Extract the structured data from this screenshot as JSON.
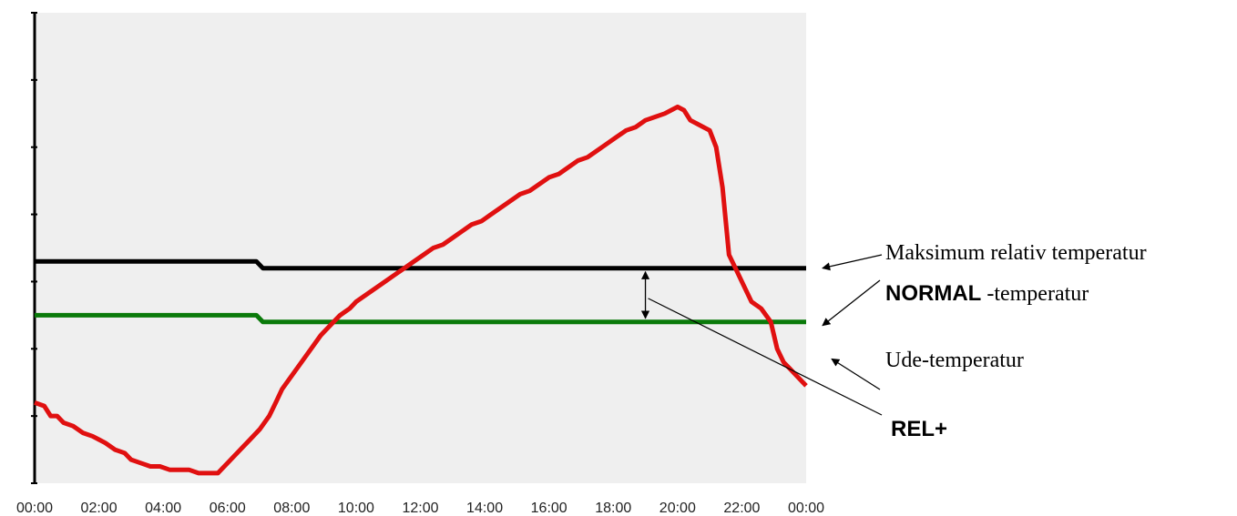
{
  "chart_data": {
    "type": "line",
    "x_ticks": [
      "00:00",
      "02:00",
      "04:00",
      "06:00",
      "08:00",
      "10:00",
      "12:00",
      "14:00",
      "16:00",
      "18:00",
      "20:00",
      "22:00",
      "00:00"
    ],
    "xlim": [
      0,
      24
    ],
    "ylim": [
      0,
      7
    ],
    "y_tick_count": 8,
    "y_tick_labels": "none",
    "grid": false,
    "background_color": "#efefef",
    "series": [
      {
        "color": "#000000",
        "x": [
          0,
          6.9,
          7.1,
          24
        ],
        "y": [
          3.3,
          3.3,
          3.2,
          3.2
        ]
      },
      {
        "color": "#0a7a0a",
        "x": [
          0,
          6.9,
          7.1,
          24
        ],
        "y": [
          2.5,
          2.5,
          2.4,
          2.4
        ]
      },
      {
        "color": "#e01010",
        "x": [
          0,
          0.3,
          0.5,
          0.7,
          0.9,
          1.2,
          1.5,
          1.8,
          2.0,
          2.2,
          2.5,
          2.8,
          3.0,
          3.3,
          3.6,
          3.9,
          4.2,
          4.5,
          4.8,
          5.1,
          5.4,
          5.7,
          6.0,
          6.3,
          6.5,
          6.7,
          7.0,
          7.3,
          7.5,
          7.7,
          8.0,
          8.3,
          8.6,
          8.9,
          9.2,
          9.5,
          9.8,
          10.0,
          10.3,
          10.6,
          10.9,
          11.2,
          11.5,
          11.8,
          12.1,
          12.4,
          12.7,
          13.0,
          13.3,
          13.6,
          13.9,
          14.2,
          14.5,
          14.8,
          15.1,
          15.4,
          15.7,
          16.0,
          16.3,
          16.6,
          16.9,
          17.2,
          17.5,
          17.8,
          18.1,
          18.4,
          18.7,
          19.0,
          19.3,
          19.6,
          19.8,
          20.0,
          20.2,
          20.4,
          20.6,
          20.8,
          21.0,
          21.2,
          21.4,
          21.6,
          21.8,
          22.0,
          22.3,
          22.6,
          22.9,
          23.1,
          23.3,
          23.5,
          23.7,
          24.0
        ],
        "y": [
          1.2,
          1.15,
          1.0,
          1.0,
          0.9,
          0.85,
          0.75,
          0.7,
          0.65,
          0.6,
          0.5,
          0.45,
          0.35,
          0.3,
          0.25,
          0.25,
          0.2,
          0.2,
          0.2,
          0.15,
          0.15,
          0.15,
          0.3,
          0.45,
          0.55,
          0.65,
          0.8,
          1.0,
          1.2,
          1.4,
          1.6,
          1.8,
          2.0,
          2.2,
          2.35,
          2.5,
          2.6,
          2.7,
          2.8,
          2.9,
          3.0,
          3.1,
          3.2,
          3.3,
          3.4,
          3.5,
          3.55,
          3.65,
          3.75,
          3.85,
          3.9,
          4.0,
          4.1,
          4.2,
          4.3,
          4.35,
          4.45,
          4.55,
          4.6,
          4.7,
          4.8,
          4.85,
          4.95,
          5.05,
          5.15,
          5.25,
          5.3,
          5.4,
          5.45,
          5.5,
          5.55,
          5.6,
          5.55,
          5.4,
          5.35,
          5.3,
          5.25,
          5.0,
          4.4,
          3.4,
          3.2,
          3.0,
          2.7,
          2.6,
          2.4,
          2.0,
          1.8,
          1.7,
          1.6,
          1.45
        ]
      }
    ],
    "annotations": [
      {
        "text": "Maksimum relativ temperatur",
        "style": "serif",
        "points_to": "black line"
      },
      {
        "text_bold": "NORMAL",
        "text": " -temperatur",
        "points_to": "green line"
      },
      {
        "text": "Ude-temperatur",
        "style": "serif",
        "points_to": "red line"
      },
      {
        "text": "REL+",
        "style": "bold",
        "points_to": "gap between black and green lines"
      }
    ]
  }
}
